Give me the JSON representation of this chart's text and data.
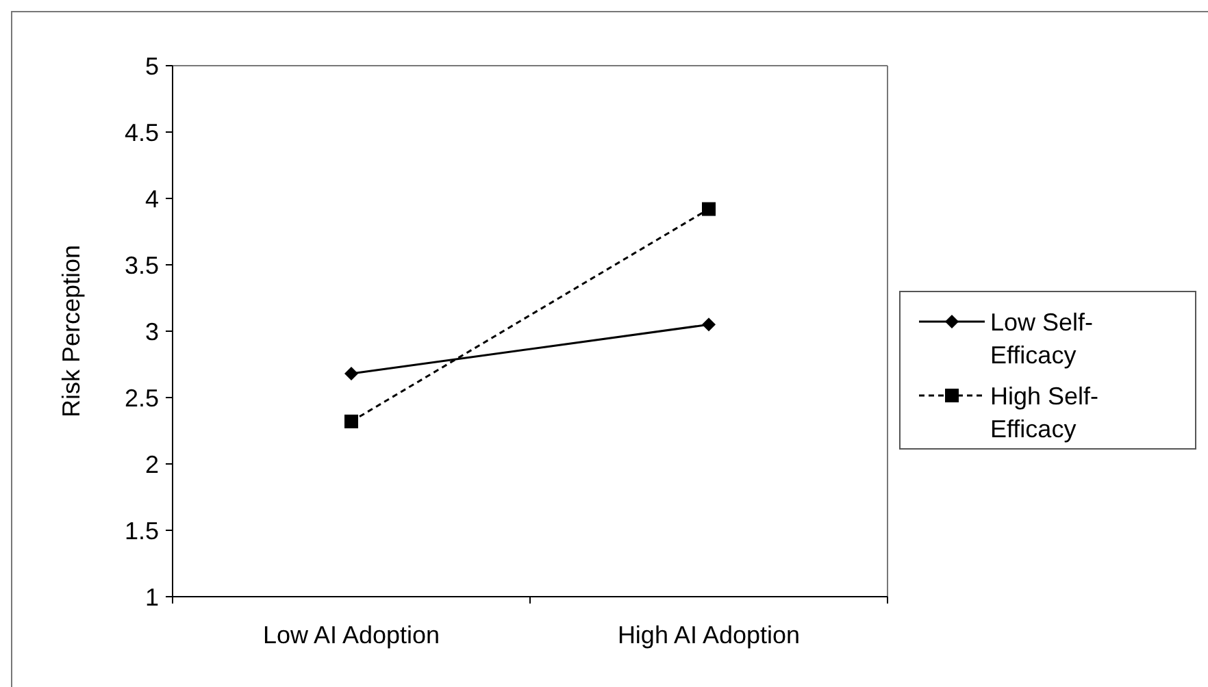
{
  "chart_data": {
    "type": "line",
    "ylabel": "Risk Perception",
    "categories": [
      "Low AI Adoption",
      "High AI Adoption"
    ],
    "series": [
      {
        "name": "Low Self-Efficacy",
        "color": "#000000",
        "values": [
          2.68,
          3.05
        ],
        "marker": "diamond",
        "line_style": "solid"
      },
      {
        "name": "High Self-Efficacy",
        "color": "#000000",
        "values": [
          2.32,
          3.92
        ],
        "marker": "square",
        "line_style": "dashed"
      }
    ],
    "ylim": [
      1,
      5
    ],
    "yticks": [
      1,
      1.5,
      2,
      2.5,
      3,
      3.5,
      4,
      4.5,
      5
    ],
    "grid": false,
    "legend": "right"
  }
}
